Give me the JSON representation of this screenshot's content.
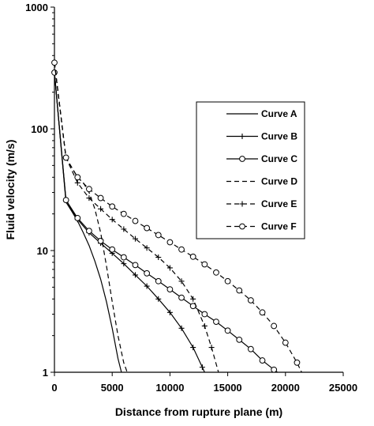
{
  "chart_data": {
    "type": "line",
    "title": "",
    "xlabel": "Distance from rupture plane (m)",
    "ylabel": "Fluid velocity (m/s)",
    "xlim": [
      0,
      25000
    ],
    "ylim": [
      1,
      1000
    ],
    "y_scale": "log",
    "grid": false,
    "legend_position": "right",
    "x_ticks": [
      0,
      5000,
      10000,
      15000,
      20000,
      25000
    ],
    "x_tick_labels": [
      "0",
      "5000",
      "10000",
      "15000",
      "20000",
      "25000"
    ],
    "y_ticks": [
      1,
      10,
      100,
      1000
    ],
    "y_tick_labels": [
      "1",
      "10",
      "100",
      "1000"
    ],
    "series": [
      {
        "name": "Curve A",
        "style": "solid",
        "marker": "none",
        "x": [
          0,
          1000,
          1500,
          2000,
          2500,
          3000,
          3500,
          4000,
          4500,
          5000,
          5500,
          5800
        ],
        "y": [
          290,
          25,
          21,
          17.5,
          14,
          11,
          8.2,
          5.8,
          3.8,
          2.3,
          1.3,
          1
        ]
      },
      {
        "name": "Curve B",
        "style": "solid",
        "marker": "plus",
        "x": [
          0,
          1000,
          2000,
          3000,
          4000,
          5000,
          6000,
          7000,
          8000,
          9000,
          10000,
          11000,
          12000,
          12800,
          13000
        ],
        "y": [
          290,
          26,
          18,
          14,
          11.5,
          9.5,
          7.8,
          6.3,
          5.1,
          4,
          3.1,
          2.3,
          1.6,
          1.1,
          1
        ]
      },
      {
        "name": "Curve C",
        "style": "solid",
        "marker": "circle",
        "x": [
          0,
          1000,
          2000,
          3000,
          4000,
          5000,
          6000,
          7000,
          8000,
          9000,
          10000,
          11000,
          12000,
          13000,
          14000,
          15000,
          16000,
          17000,
          18000,
          19000,
          19300
        ],
        "y": [
          290,
          26,
          18.5,
          14.5,
          12,
          10.2,
          8.8,
          7.6,
          6.5,
          5.6,
          4.8,
          4.1,
          3.5,
          3,
          2.6,
          2.2,
          1.85,
          1.55,
          1.25,
          1.05,
          1
        ]
      },
      {
        "name": "Curve D",
        "style": "dashed",
        "marker": "none",
        "x": [
          0,
          1000,
          2000,
          2500,
          3000,
          3500,
          4000,
          4500,
          5000,
          5500,
          6000,
          6300
        ],
        "y": [
          350,
          58,
          40,
          36,
          30,
          22,
          14,
          7.5,
          3.8,
          2,
          1.2,
          1
        ]
      },
      {
        "name": "Curve E",
        "style": "dashed",
        "marker": "plus",
        "x": [
          0,
          1000,
          2000,
          3000,
          4000,
          5000,
          6000,
          7000,
          8000,
          9000,
          10000,
          11000,
          12000,
          13000,
          13600,
          14200
        ],
        "y": [
          350,
          58,
          36,
          27,
          22,
          18,
          15,
          12.5,
          10.5,
          8.8,
          7.2,
          5.6,
          4,
          2.4,
          1.6,
          1
        ]
      },
      {
        "name": "Curve F",
        "style": "dashed",
        "marker": "circle",
        "x": [
          0,
          1000,
          2000,
          3000,
          4000,
          5000,
          6000,
          7000,
          8000,
          9000,
          10000,
          11000,
          12000,
          13000,
          14000,
          15000,
          16000,
          17000,
          18000,
          19000,
          20000,
          21000,
          21400
        ],
        "y": [
          350,
          58,
          40,
          32,
          27,
          23,
          20,
          17.5,
          15.3,
          13.4,
          11.7,
          10.2,
          8.9,
          7.7,
          6.6,
          5.6,
          4.7,
          3.9,
          3.1,
          2.4,
          1.75,
          1.2,
          1
        ]
      }
    ]
  }
}
